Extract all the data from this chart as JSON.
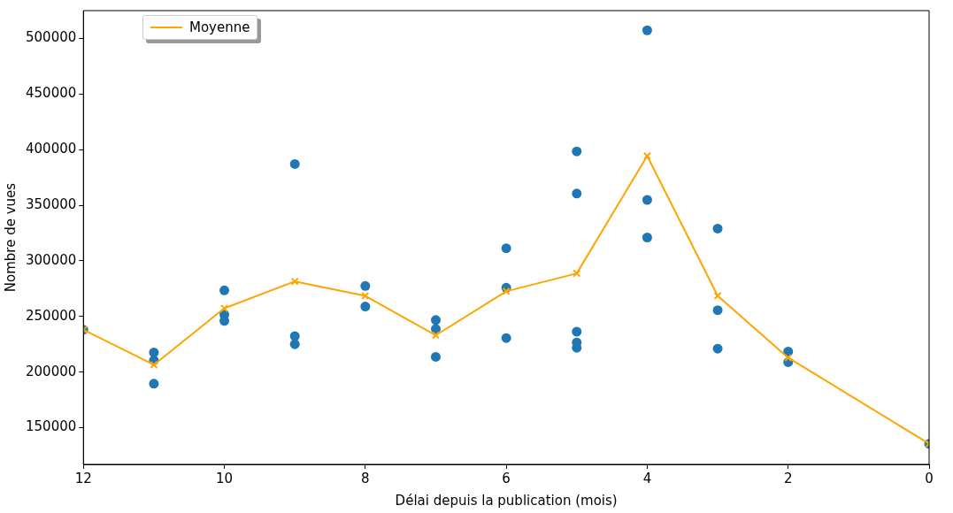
{
  "chart_data": {
    "type": "scatter",
    "xlabel": "Délai depuis la publication (mois)",
    "ylabel": "Nombre de vues",
    "xlim": [
      12,
      0
    ],
    "xticks": [
      12,
      10,
      8,
      6,
      4,
      2,
      0
    ],
    "ylim": [
      117000,
      525000
    ],
    "yticks": [
      150000,
      200000,
      250000,
      300000,
      350000,
      400000,
      450000,
      500000
    ],
    "grid": false,
    "legend": "top left",
    "series": [
      {
        "type": "scatter",
        "color": "#1f77b4",
        "marker": "circle",
        "x": [
          12,
          11,
          11,
          11,
          10,
          10,
          10,
          9,
          9,
          9,
          8,
          8,
          7,
          7,
          7,
          6,
          6,
          6,
          5,
          5,
          5,
          5,
          5,
          4,
          4,
          4,
          3,
          3,
          3,
          2,
          2,
          0
        ],
        "values": [
          238000,
          217700,
          210500,
          189500,
          273400,
          251600,
          246000,
          387100,
          232300,
          225000,
          277400,
          258900,
          246800,
          238700,
          213700,
          311300,
          275800,
          230600,
          398400,
          360500,
          236300,
          226600,
          221800,
          507300,
          354800,
          321000,
          329000,
          255600,
          221000,
          218500,
          208900,
          135500
        ]
      },
      {
        "type": "line",
        "name": "Moyenne",
        "color": "#ffa500",
        "marker": "cross",
        "line_style": "solid",
        "x": [
          12,
          11,
          10,
          9,
          8,
          7,
          6,
          5,
          4,
          3,
          2,
          0
        ],
        "values": [
          238000,
          206500,
          257300,
          281500,
          268500,
          233100,
          272600,
          288700,
          394400,
          268500,
          212900,
          135500
        ]
      }
    ]
  }
}
